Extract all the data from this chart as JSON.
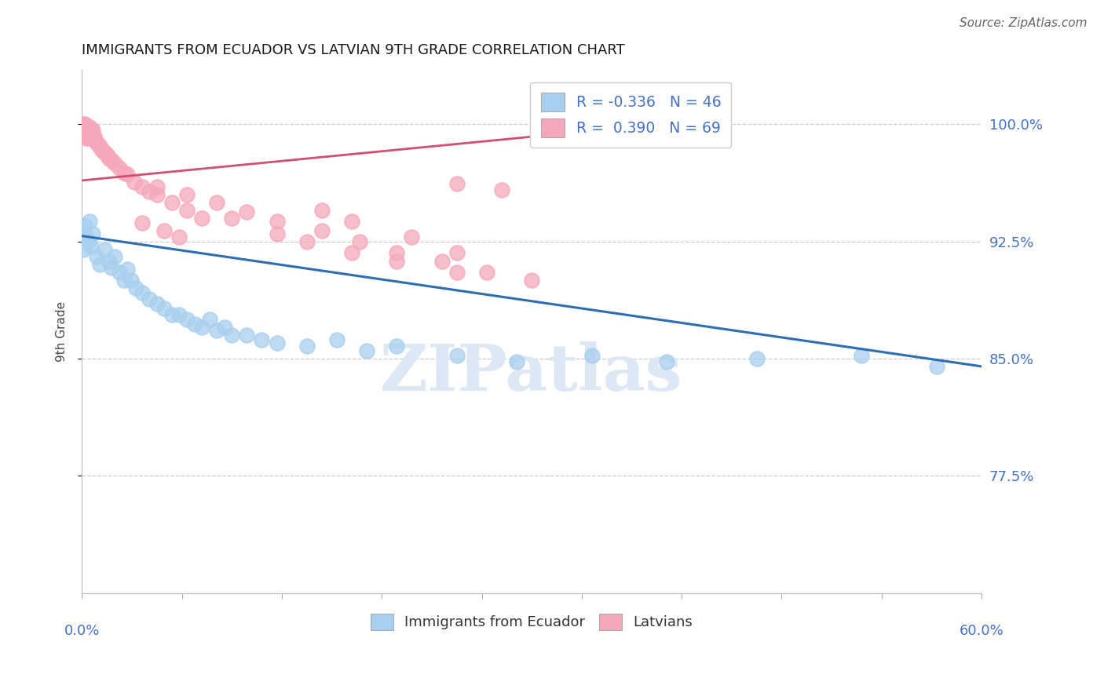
{
  "title": "IMMIGRANTS FROM ECUADOR VS LATVIAN 9TH GRADE CORRELATION CHART",
  "source": "Source: ZipAtlas.com",
  "ylabel": "9th Grade",
  "ytick_values": [
    0.775,
    0.85,
    0.925,
    1.0
  ],
  "ytick_labels": [
    "77.5%",
    "85.0%",
    "92.5%",
    "100.0%"
  ],
  "xlim": [
    0.0,
    0.6
  ],
  "ylim": [
    0.7,
    1.035
  ],
  "legend_r_blue": "-0.336",
  "legend_n_blue": "46",
  "legend_r_pink": "0.390",
  "legend_n_pink": "69",
  "blue_x": [
    0.001,
    0.001,
    0.002,
    0.003,
    0.004,
    0.005,
    0.006,
    0.007,
    0.01,
    0.012,
    0.015,
    0.018,
    0.02,
    0.022,
    0.025,
    0.028,
    0.03,
    0.033,
    0.036,
    0.04,
    0.045,
    0.05,
    0.055,
    0.06,
    0.065,
    0.07,
    0.075,
    0.08,
    0.085,
    0.09,
    0.095,
    0.1,
    0.11,
    0.12,
    0.13,
    0.15,
    0.17,
    0.19,
    0.21,
    0.25,
    0.29,
    0.34,
    0.39,
    0.45,
    0.52,
    0.57
  ],
  "blue_y": [
    0.93,
    0.92,
    0.935,
    0.928,
    0.925,
    0.938,
    0.922,
    0.93,
    0.915,
    0.91,
    0.92,
    0.912,
    0.908,
    0.915,
    0.905,
    0.9,
    0.907,
    0.9,
    0.895,
    0.892,
    0.888,
    0.885,
    0.882,
    0.878,
    0.878,
    0.875,
    0.872,
    0.87,
    0.875,
    0.868,
    0.87,
    0.865,
    0.865,
    0.862,
    0.86,
    0.858,
    0.862,
    0.855,
    0.858,
    0.852,
    0.848,
    0.852,
    0.848,
    0.85,
    0.852,
    0.845
  ],
  "pink_x": [
    0.001,
    0.001,
    0.001,
    0.002,
    0.002,
    0.002,
    0.002,
    0.003,
    0.003,
    0.003,
    0.003,
    0.004,
    0.004,
    0.004,
    0.005,
    0.005,
    0.006,
    0.006,
    0.007,
    0.007,
    0.008,
    0.009,
    0.01,
    0.011,
    0.012,
    0.013,
    0.014,
    0.015,
    0.016,
    0.017,
    0.018,
    0.02,
    0.022,
    0.025,
    0.028,
    0.03,
    0.035,
    0.04,
    0.045,
    0.05,
    0.06,
    0.07,
    0.08,
    0.04,
    0.055,
    0.065,
    0.1,
    0.13,
    0.15,
    0.18,
    0.21,
    0.25,
    0.05,
    0.07,
    0.09,
    0.11,
    0.13,
    0.16,
    0.185,
    0.21,
    0.24,
    0.27,
    0.3,
    0.25,
    0.28,
    0.16,
    0.18,
    0.22,
    0.25
  ],
  "pink_y": [
    1.0,
    0.998,
    0.996,
    1.0,
    0.998,
    0.995,
    0.993,
    0.999,
    0.997,
    0.994,
    0.991,
    0.997,
    0.994,
    0.991,
    0.998,
    0.994,
    0.997,
    0.993,
    0.996,
    0.991,
    0.992,
    0.99,
    0.988,
    0.987,
    0.986,
    0.984,
    0.983,
    0.982,
    0.981,
    0.98,
    0.978,
    0.977,
    0.975,
    0.972,
    0.969,
    0.968,
    0.963,
    0.96,
    0.957,
    0.955,
    0.95,
    0.945,
    0.94,
    0.937,
    0.932,
    0.928,
    0.94,
    0.93,
    0.925,
    0.918,
    0.912,
    0.905,
    0.96,
    0.955,
    0.95,
    0.944,
    0.938,
    0.932,
    0.925,
    0.918,
    0.912,
    0.905,
    0.9,
    0.962,
    0.958,
    0.945,
    0.938,
    0.928,
    0.918
  ],
  "blue_line_x": [
    0.0,
    0.6
  ],
  "blue_line_y": [
    0.9285,
    0.845
  ],
  "pink_line_x": [
    0.0,
    0.3
  ],
  "pink_line_y": [
    0.964,
    0.992
  ],
  "blue_scatter_color": "#A8CFEE",
  "pink_scatter_color": "#F5A8BC",
  "blue_line_color": "#2E6DB4",
  "pink_line_color": "#D05070",
  "label_color": "#4472C4",
  "title_color": "#1A1A1A",
  "grid_color": "#CCCCCC",
  "watermark_color": "#DCE9F5",
  "bg_color": "#FFFFFF"
}
